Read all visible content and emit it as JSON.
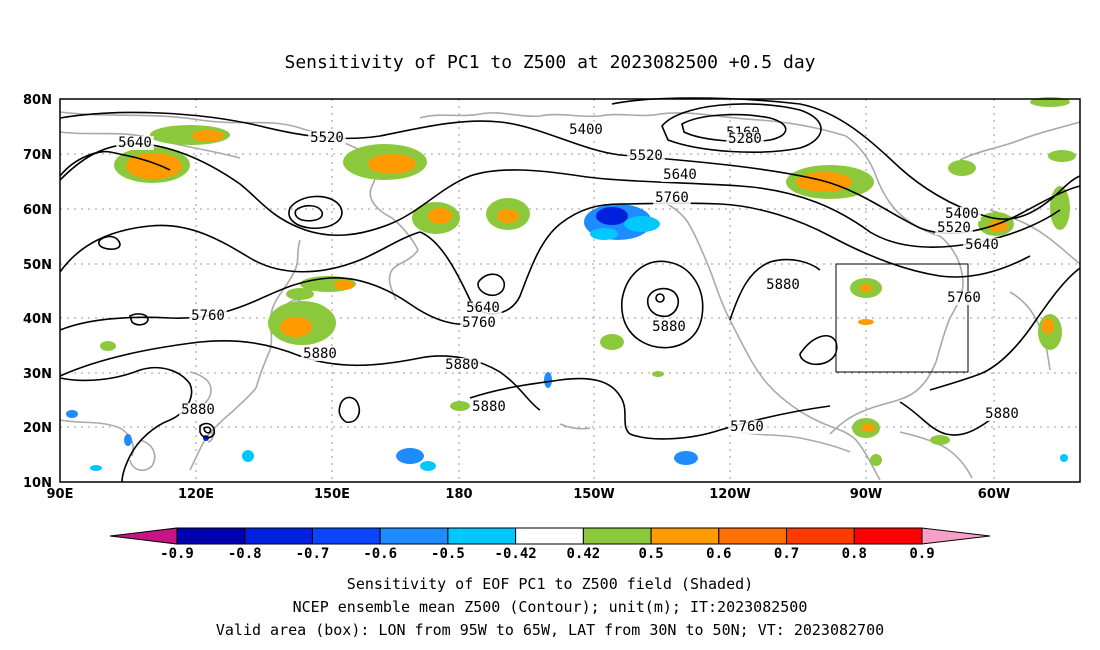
{
  "title": "Sensitivity of PC1 to Z500 at 2023082500 +0.5 day",
  "lat_labels": [
    "80N",
    "70N",
    "60N",
    "50N",
    "40N",
    "30N",
    "20N",
    "10N"
  ],
  "lon_labels": [
    "90E",
    "120E",
    "150E",
    "180",
    "150W",
    "120W",
    "90W",
    "60W"
  ],
  "contour_labels": [
    {
      "text": "5640"
    },
    {
      "text": "5520"
    },
    {
      "text": "5400"
    },
    {
      "text": "5160"
    },
    {
      "text": "5280"
    },
    {
      "text": "5520"
    },
    {
      "text": "5640"
    },
    {
      "text": "5760"
    },
    {
      "text": "5400"
    },
    {
      "text": "5520"
    },
    {
      "text": "5640"
    },
    {
      "text": "5760"
    },
    {
      "text": "5880"
    },
    {
      "text": "5760"
    },
    {
      "text": "5640"
    },
    {
      "text": "5760"
    },
    {
      "text": "5880"
    },
    {
      "text": "5880"
    },
    {
      "text": "5880"
    },
    {
      "text": "5880"
    },
    {
      "text": "5760"
    },
    {
      "text": "5880"
    },
    {
      "text": "5880"
    }
  ],
  "colorbar": {
    "labels": [
      "-0.9",
      "-0.8",
      "-0.7",
      "-0.6",
      "-0.5",
      "-0.42",
      "0.42",
      "0.5",
      "0.6",
      "0.7",
      "0.8",
      "0.9"
    ],
    "colors": [
      "#c71585",
      "#0000b0",
      "#0020e0",
      "#0a46ff",
      "#1e8cff",
      "#00c8ff",
      "#ffffff",
      "#8cc83c",
      "#ff9a00",
      "#ff6e00",
      "#ff3c00",
      "#ff0000",
      "#f7a0c8"
    ]
  },
  "footer": {
    "line1": "Sensitivity of EOF PC1 to Z500 field (Shaded)",
    "line2": "NCEP ensemble mean Z500 (Contour); unit(m); IT:2023082500",
    "line3": "Valid area (box): LON from 95W to 65W, LAT from 30N to 50N; VT: 2023082700"
  },
  "colors": {
    "positive_green": "#8cc83c",
    "positive_orange": "#ff9a00",
    "negative_blue": "#1e8cff",
    "negative_deep": "#0020e0",
    "coastline": "#a9a9a9"
  }
}
